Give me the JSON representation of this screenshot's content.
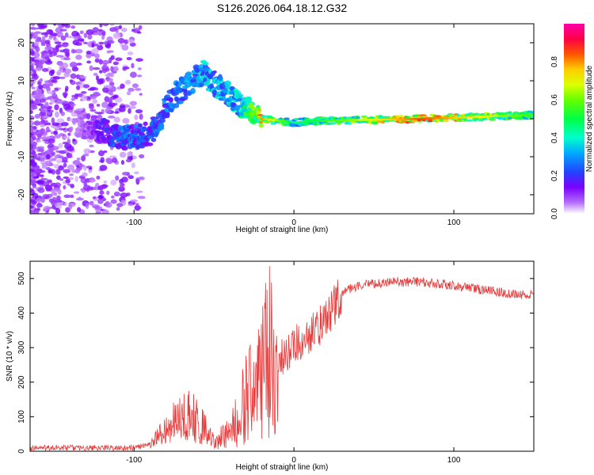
{
  "title": "S126.2026.064.18.12.G32",
  "chart_data": [
    {
      "type": "heatmap",
      "title": "S126.2026.064.18.12.G32",
      "xlabel": "Height of straight line (km)",
      "ylabel": "Frequency (Hz)",
      "xlim": [
        -165,
        150
      ],
      "ylim": [
        -25,
        25
      ],
      "xticks": [
        -100,
        0,
        100
      ],
      "yticks": [
        -20,
        -10,
        0,
        10,
        20
      ],
      "xtick_labels": [
        "-100",
        "0",
        "100"
      ],
      "ytick_labels": [
        "-20",
        "-10",
        "0",
        "10",
        "20"
      ],
      "colorbar": {
        "label": "Normalized spectral amplitude",
        "range": [
          0,
          1
        ],
        "ticks": [
          0.0,
          0.2,
          0.4,
          0.6,
          0.8
        ],
        "tick_labels": [
          "0.0",
          "0.2",
          "0.4",
          "0.6",
          "0.8"
        ],
        "colormap": "rainbow (white-violet-blue-cyan-green-yellow-red-magenta)"
      },
      "description_ridge": [
        {
          "x": -130,
          "freq": -2,
          "amp": 0.1
        },
        {
          "x": -105,
          "freq": -5,
          "amp": 0.3
        },
        {
          "x": -90,
          "freq": -4,
          "amp": 0.25
        },
        {
          "x": -75,
          "freq": 6,
          "amp": 0.3
        },
        {
          "x": -57,
          "freq": 12,
          "amp": 0.35
        },
        {
          "x": -35,
          "freq": 4,
          "amp": 0.4
        },
        {
          "x": -20,
          "freq": 0,
          "amp": 0.8
        },
        {
          "x": 0,
          "freq": -1,
          "amp": 0.45
        },
        {
          "x": 20,
          "freq": -0.5,
          "amp": 0.55
        },
        {
          "x": 80,
          "freq": 0,
          "amp": 0.85
        },
        {
          "x": 150,
          "freq": 1,
          "amp": 0.55
        }
      ]
    },
    {
      "type": "line",
      "title": "",
      "xlabel": "Height of straight line (km)",
      "ylabel": "SNR (10 * v/v)",
      "xlim": [
        -165,
        150
      ],
      "ylim": [
        0,
        550
      ],
      "xticks": [
        -100,
        0,
        100
      ],
      "yticks": [
        0,
        100,
        200,
        300,
        400,
        500
      ],
      "xtick_labels": [
        "-100",
        "0",
        "100"
      ],
      "ytick_labels": [
        "0",
        "100",
        "200",
        "300",
        "400",
        "500"
      ],
      "series": [
        {
          "name": "SNR",
          "color": "#e83a3a",
          "x": [
            -165,
            -100,
            -90,
            -80,
            -70,
            -60,
            -50,
            -40,
            -30,
            -20,
            -15,
            -10,
            0,
            10,
            20,
            30,
            40,
            60,
            80,
            100,
            120,
            140,
            150
          ],
          "y": [
            10,
            10,
            20,
            60,
            110,
            90,
            30,
            50,
            150,
            220,
            300,
            250,
            310,
            340,
            380,
            460,
            480,
            490,
            490,
            480,
            465,
            455,
            455
          ]
        }
      ]
    }
  ]
}
